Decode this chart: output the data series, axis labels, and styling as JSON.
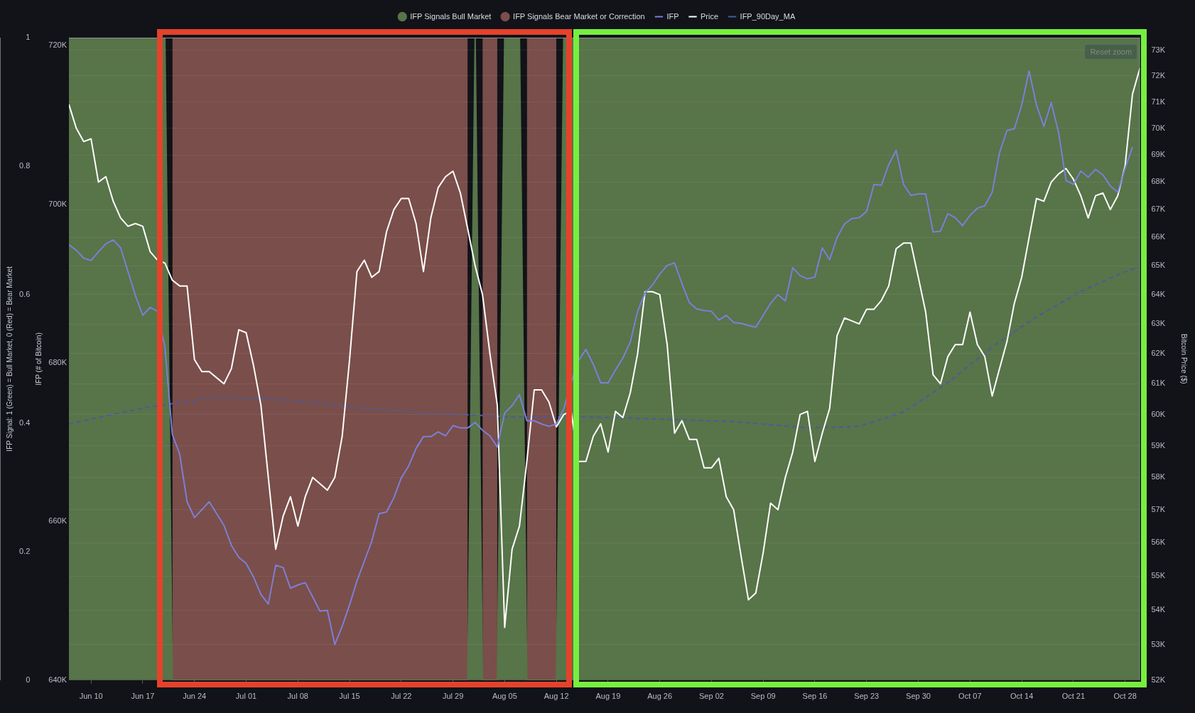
{
  "chart_data": {
    "type": "line",
    "annotations": [
      "Reset zoom"
    ],
    "ylabel": "Bitcoin Price ($)",
    "y2label": "IFP (# of Bitcoin)",
    "y3label": "IFP Signal: 1 (Green) = Bull Market, 0 (Red) = Bear Market",
    "legend": "top",
    "grid": "y",
    "log": "y",
    "xlim": [
      "--06-07",
      "--10-30"
    ],
    "xticks": [
      {
        "value": "--06-10",
        "label": "Jun 10"
      },
      {
        "value": "--06-17",
        "label": "Jun 17"
      },
      {
        "value": "--06-24",
        "label": "Jun 24"
      },
      {
        "value": "--07-01",
        "label": "Jul 01"
      },
      {
        "value": "--07-08",
        "label": "Jul 08"
      },
      {
        "value": "--07-15",
        "label": "Jul 15"
      },
      {
        "value": "--07-22",
        "label": "Jul 22"
      },
      {
        "value": "--07-29",
        "label": "Jul 29"
      },
      {
        "value": "--08-05",
        "label": "Aug 05"
      },
      {
        "value": "--08-12",
        "label": "Aug 12"
      },
      {
        "value": "--08-19",
        "label": "Aug 19"
      },
      {
        "value": "--08-26",
        "label": "Aug 26"
      },
      {
        "value": "--09-02",
        "label": "Sep 02"
      },
      {
        "value": "--09-09",
        "label": "Sep 09"
      },
      {
        "value": "--09-16",
        "label": "Sep 16"
      },
      {
        "value": "--09-23",
        "label": "Sep 23"
      },
      {
        "value": "--09-30",
        "label": "Sep 30"
      },
      {
        "value": "--10-07",
        "label": "Oct 07"
      },
      {
        "value": "--10-14",
        "label": "Oct 14"
      },
      {
        "value": "--10-21",
        "label": "Oct 21"
      },
      {
        "value": "--10-28",
        "label": "Oct 28"
      }
    ],
    "ylim": [
      52000,
      73500
    ],
    "yticks": [
      {
        "value": 52000,
        "label": "52K"
      },
      {
        "value": 53000,
        "label": "53K"
      },
      {
        "value": 54000,
        "label": "54K"
      },
      {
        "value": 55000,
        "label": "55K"
      },
      {
        "value": 56000,
        "label": "56K"
      },
      {
        "value": 57000,
        "label": "57K"
      },
      {
        "value": 58000,
        "label": "58K"
      },
      {
        "value": 59000,
        "label": "59K"
      },
      {
        "value": 60000,
        "label": "60K"
      },
      {
        "value": 61000,
        "label": "61K"
      },
      {
        "value": 62000,
        "label": "62K"
      },
      {
        "value": 63000,
        "label": "63K"
      },
      {
        "value": 64000,
        "label": "64K"
      },
      {
        "value": 65000,
        "label": "65K"
      },
      {
        "value": 66000,
        "label": "66K"
      },
      {
        "value": 67000,
        "label": "67K"
      },
      {
        "value": 68000,
        "label": "68K"
      },
      {
        "value": 69000,
        "label": "69K"
      },
      {
        "value": 70000,
        "label": "70K"
      },
      {
        "value": 71000,
        "label": "71K"
      },
      {
        "value": 72000,
        "label": "72K"
      },
      {
        "value": 73000,
        "label": "73K"
      }
    ],
    "y2lim": [
      640000,
      721000
    ],
    "y2ticks": [
      {
        "value": 640000,
        "label": "640K"
      },
      {
        "value": 660000,
        "label": "660K"
      },
      {
        "value": 680000,
        "label": "680K"
      },
      {
        "value": 700000,
        "label": "700K"
      },
      {
        "value": 720000,
        "label": "720K"
      }
    ],
    "y3lim": [
      0,
      1
    ],
    "y3ticks": [
      0,
      0.2,
      0.4,
      0.6,
      0.8,
      1
    ],
    "x": [
      "--06-07",
      "--06-08",
      "--06-09",
      "--06-10",
      "--06-11",
      "--06-12",
      "--06-13",
      "--06-14",
      "--06-15",
      "--06-16",
      "--06-17",
      "--06-18",
      "--06-19",
      "--06-20",
      "--06-21",
      "--06-22",
      "--06-23",
      "--06-24",
      "--06-25",
      "--06-26",
      "--06-27",
      "--06-28",
      "--06-29",
      "--06-30",
      "--07-01",
      "--07-02",
      "--07-03",
      "--07-04",
      "--07-05",
      "--07-06",
      "--07-07",
      "--07-08",
      "--07-09",
      "--07-10",
      "--07-11",
      "--07-12",
      "--07-13",
      "--07-14",
      "--07-15",
      "--07-16",
      "--07-17",
      "--07-18",
      "--07-19",
      "--07-20",
      "--07-21",
      "--07-22",
      "--07-23",
      "--07-24",
      "--07-25",
      "--07-26",
      "--07-27",
      "--07-28",
      "--07-29",
      "--07-30",
      "--07-31",
      "--08-01",
      "--08-02",
      "--08-03",
      "--08-04",
      "--08-05",
      "--08-06",
      "--08-07",
      "--08-08",
      "--08-09",
      "--08-10",
      "--08-11",
      "--08-12",
      "--08-13",
      "--08-14",
      "--08-15",
      "--08-16",
      "--08-17",
      "--08-18",
      "--08-19",
      "--08-20",
      "--08-21",
      "--08-22",
      "--08-23",
      "--08-24",
      "--08-25",
      "--08-26",
      "--08-27",
      "--08-28",
      "--08-29",
      "--08-30",
      "--08-31",
      "--09-01",
      "--09-02",
      "--09-03",
      "--09-04",
      "--09-05",
      "--09-06",
      "--09-07",
      "--09-08",
      "--09-09",
      "--09-10",
      "--09-11",
      "--09-12",
      "--09-13",
      "--09-14",
      "--09-15",
      "--09-16",
      "--09-17",
      "--09-18",
      "--09-19",
      "--09-20",
      "--09-21",
      "--09-22",
      "--09-23",
      "--09-24",
      "--09-25",
      "--09-26",
      "--09-27",
      "--09-28",
      "--09-29",
      "--09-30",
      "--10-01",
      "--10-02",
      "--10-03",
      "--10-04",
      "--10-05",
      "--10-06",
      "--10-07",
      "--10-08",
      "--10-09",
      "--10-10",
      "--10-11",
      "--10-12",
      "--10-13",
      "--10-14",
      "--10-15",
      "--10-16",
      "--10-17",
      "--10-18",
      "--10-19",
      "--10-20",
      "--10-21",
      "--10-22",
      "--10-23",
      "--10-24",
      "--10-25",
      "--10-26",
      "--10-27",
      "--10-28",
      "--10-29",
      "--10-30"
    ],
    "series": [
      {
        "name": "IFP Signals Bull Market",
        "type": "area",
        "axis": "y3",
        "color": "#587449",
        "x": [
          "--06-07",
          "--06-20",
          "--06-21",
          "--07-31",
          "--08-01",
          "--08-02",
          "--08-04",
          "--08-05",
          "--08-07",
          "--08-08",
          "--08-12",
          "--08-13",
          "--10-30"
        ],
        "values": [
          1,
          1,
          0,
          0,
          1,
          0,
          0,
          1,
          1,
          0,
          0,
          1,
          1
        ]
      },
      {
        "name": "IFP Signals Bear Market or Correction",
        "type": "area",
        "axis": "y3",
        "color": "#7a4e4a",
        "x": [
          "--06-21",
          "--07-31",
          "--08-01",
          "--08-02",
          "--08-04",
          "--08-05",
          "--08-08",
          "--08-12"
        ],
        "values": [
          1,
          1,
          null,
          1,
          1,
          null,
          1,
          1
        ]
      },
      {
        "name": "IFP",
        "axis": "y2",
        "color": "#7b7fd8",
        "values": [
          694900,
          694200,
          693200,
          692900,
          694000,
          695000,
          695500,
          694500,
          691500,
          688500,
          686000,
          687000,
          686500,
          682000,
          671000,
          668500,
          662500,
          660500,
          661500,
          662500,
          661000,
          659500,
          657000,
          655500,
          654700,
          653000,
          650800,
          649600,
          654500,
          654200,
          651600,
          652000,
          652300,
          650500,
          648700,
          648800,
          644500,
          646800,
          649500,
          652500,
          655000,
          657500,
          661000,
          661200,
          663000,
          665500,
          667000,
          669200,
          670700,
          670700,
          671300,
          670800,
          672100,
          671800,
          671800,
          672500,
          671500,
          670800,
          669400,
          673700,
          674600,
          676000,
          672700,
          672700,
          672300,
          672000,
          672300,
          674200,
          677500,
          680300,
          681700,
          679800,
          677500,
          677500,
          679100,
          680600,
          682600,
          686500,
          688800,
          689800,
          691200,
          692300,
          692600,
          690000,
          687600,
          686800,
          686600,
          686500,
          685400,
          686000,
          685100,
          685000,
          684700,
          684500,
          686000,
          687500,
          688600,
          687800,
          692000,
          691000,
          690600,
          690800,
          694500,
          693000,
          695800,
          697500,
          698200,
          698300,
          699100,
          702500,
          702400,
          705000,
          706800,
          702500,
          701100,
          701300,
          701300,
          696500,
          696600,
          698800,
          698300,
          697300,
          698600,
          699500,
          699800,
          701500,
          706500,
          709300,
          709500,
          712500,
          716800,
          712500,
          709800,
          712800,
          709000,
          703000,
          702500,
          704200,
          703400,
          704400,
          703700,
          702300,
          701500,
          704500,
          707200,
          null
        ]
      },
      {
        "name": "Price",
        "axis": "y",
        "color": "#ffffff",
        "values": [
          70900,
          70000,
          69500,
          69600,
          68000,
          68200,
          67300,
          66700,
          66400,
          66500,
          66400,
          65500,
          65200,
          65100,
          64500,
          64300,
          64300,
          61800,
          61400,
          61400,
          61200,
          61000,
          61500,
          62800,
          62700,
          61600,
          60300,
          58000,
          55800,
          56800,
          57400,
          56500,
          57400,
          58000,
          57800,
          57600,
          58000,
          59300,
          61800,
          64800,
          65200,
          64600,
          64800,
          66200,
          67000,
          67400,
          67400,
          66500,
          64800,
          66700,
          67800,
          68200,
          68400,
          67600,
          66300,
          65000,
          64000,
          62000,
          60300,
          53500,
          55800,
          56500,
          58500,
          60800,
          60800,
          60400,
          59600,
          60000,
          60100,
          58500,
          58500,
          59300,
          59700,
          58800,
          60100,
          59900,
          60700,
          62000,
          64100,
          64100,
          64000,
          62300,
          59400,
          59800,
          59200,
          59200,
          58300,
          58300,
          58600,
          57400,
          57000,
          55600,
          54300,
          54500,
          55700,
          57200,
          57000,
          58000,
          58800,
          60000,
          60100,
          58500,
          59400,
          60200,
          62600,
          63200,
          63100,
          63000,
          63500,
          63500,
          63800,
          64300,
          65600,
          65800,
          65800,
          64600,
          63400,
          61300,
          61000,
          61900,
          62300,
          62300,
          63400,
          62300,
          61900,
          60600,
          61500,
          62400,
          63700,
          64600,
          66000,
          67400,
          67300,
          68000,
          68300,
          68500,
          68100,
          67500,
          66700,
          67500,
          67600,
          67000,
          67500,
          68600,
          71300,
          72300
        ]
      },
      {
        "name": "IFP_90Day_MA",
        "axis": "y2",
        "color": "#4a5aa0",
        "line_style": "dashed",
        "x": [
          "--06-07",
          "--06-17",
          "--06-27",
          "--07-07",
          "--07-17",
          "--07-27",
          "--08-06",
          "--08-16",
          "--08-26",
          "--09-05",
          "--09-15",
          "--09-22",
          "--09-28",
          "--10-04",
          "--10-10",
          "--10-16",
          "--10-22",
          "--10-28",
          "--10-30"
        ],
        "values": [
          672300,
          674300,
          675700,
          675300,
          674300,
          673600,
          673200,
          673200,
          672900,
          672600,
          671800,
          672000,
          673800,
          677500,
          682000,
          685800,
          689000,
          691500,
          692100
        ]
      }
    ]
  }
}
